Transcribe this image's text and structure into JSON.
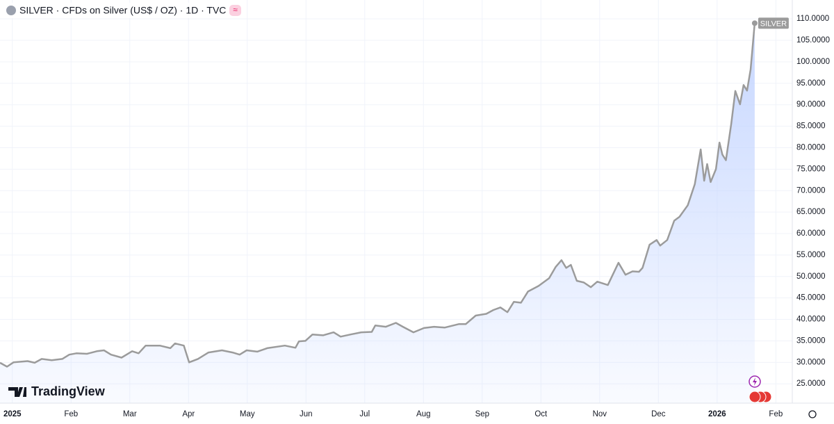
{
  "chart_data": {
    "type": "line",
    "title": "SILVER · CFDs on Silver (US$ / OZ) · 1D · TVC",
    "badge": "≈",
    "logo": "TradingView",
    "x": [
      -0.21,
      -0.09,
      0.02,
      0.26,
      0.38,
      0.5,
      0.67,
      0.85,
      0.97,
      1.09,
      1.27,
      1.44,
      1.56,
      1.68,
      1.86,
      2.04,
      2.15,
      2.27,
      2.51,
      2.69,
      2.77,
      2.92,
      3.01,
      3.16,
      3.34,
      3.57,
      3.75,
      3.87,
      3.99,
      4.17,
      4.34,
      4.64,
      4.82,
      4.88,
      4.99,
      5.11,
      5.29,
      5.47,
      5.59,
      5.76,
      5.94,
      6.12,
      6.18,
      6.36,
      6.53,
      6.65,
      6.83,
      7.01,
      7.18,
      7.36,
      7.6,
      7.72,
      7.89,
      8.07,
      8.19,
      8.31,
      8.43,
      8.54,
      8.66,
      8.78,
      8.96,
      9.14,
      9.25,
      9.35,
      9.43,
      9.51,
      9.61,
      9.73,
      9.85,
      9.96,
      10.14,
      10.32,
      10.44,
      10.56,
      10.67,
      10.73,
      10.85,
      10.97,
      11.03,
      11.15,
      11.27,
      11.36,
      11.5,
      11.62,
      11.72,
      11.78,
      11.83,
      11.89,
      11.98,
      12.04,
      12.09,
      12.15,
      12.24,
      12.31,
      12.39,
      12.45,
      12.51,
      12.57,
      12.64
    ],
    "series": [
      {
        "name": "SILVER",
        "color": "#9b9b9b",
        "fill": "#cddcff",
        "values": [
          29.9,
          29.0,
          30.0,
          30.3,
          29.9,
          30.8,
          30.5,
          30.8,
          31.8,
          32.1,
          32.0,
          32.6,
          32.8,
          31.8,
          31.1,
          32.6,
          32.1,
          33.9,
          33.9,
          33.3,
          34.4,
          33.9,
          30.0,
          30.8,
          32.3,
          32.8,
          32.3,
          31.8,
          32.8,
          32.5,
          33.3,
          33.9,
          33.4,
          34.9,
          35.0,
          36.5,
          36.3,
          37.0,
          36.0,
          36.5,
          37.0,
          37.1,
          38.6,
          38.3,
          39.2,
          38.3,
          37.0,
          38.0,
          38.3,
          38.1,
          38.9,
          38.9,
          40.9,
          41.3,
          42.2,
          42.8,
          41.7,
          44.1,
          43.9,
          46.5,
          47.8,
          49.6,
          52.2,
          53.8,
          52.0,
          52.7,
          49.0,
          48.6,
          47.5,
          48.8,
          48.0,
          53.2,
          50.4,
          51.2,
          51.1,
          52.0,
          57.4,
          58.5,
          57.2,
          58.5,
          63.0,
          63.9,
          66.6,
          71.5,
          79.6,
          72.3,
          76.2,
          72.0,
          75.0,
          81.2,
          78.4,
          77.1,
          85.5,
          93.2,
          90.1,
          94.6,
          93.3,
          98.2,
          109.0
        ]
      }
    ],
    "xlim": [
      -0.21,
      13.28
    ],
    "xticks": [
      {
        "value": 0,
        "label": "2025"
      },
      {
        "value": 1,
        "label": "Feb"
      },
      {
        "value": 2,
        "label": "Mar"
      },
      {
        "value": 3,
        "label": "Apr"
      },
      {
        "value": 4,
        "label": "May"
      },
      {
        "value": 5,
        "label": "Jun"
      },
      {
        "value": 6,
        "label": "Jul"
      },
      {
        "value": 7,
        "label": "Aug"
      },
      {
        "value": 8,
        "label": "Sep"
      },
      {
        "value": 9,
        "label": "Oct"
      },
      {
        "value": 10,
        "label": "Nov"
      },
      {
        "value": 11,
        "label": "Dec"
      },
      {
        "value": 12,
        "label": "2026"
      },
      {
        "value": 13,
        "label": "Feb"
      }
    ],
    "ylim": [
      20.5,
      114.4
    ],
    "yticks": [
      {
        "value": 25,
        "label": "25.0000"
      },
      {
        "value": 30,
        "label": "30.0000"
      },
      {
        "value": 35,
        "label": "35.0000"
      },
      {
        "value": 40,
        "label": "40.0000"
      },
      {
        "value": 45,
        "label": "45.0000"
      },
      {
        "value": 50,
        "label": "50.0000"
      },
      {
        "value": 55,
        "label": "55.0000"
      },
      {
        "value": 60,
        "label": "60.0000"
      },
      {
        "value": 65,
        "label": "65.0000"
      },
      {
        "value": 70,
        "label": "70.0000"
      },
      {
        "value": 75,
        "label": "75.0000"
      },
      {
        "value": 80,
        "label": "80.0000"
      },
      {
        "value": 85,
        "label": "85.0000"
      },
      {
        "value": 90,
        "label": "90.0000"
      },
      {
        "value": 95,
        "label": "95.0000"
      },
      {
        "value": 100,
        "label": "100.0000"
      },
      {
        "value": 105,
        "label": "105.0000"
      },
      {
        "value": 110,
        "label": "110.0000"
      }
    ],
    "grid": true
  }
}
